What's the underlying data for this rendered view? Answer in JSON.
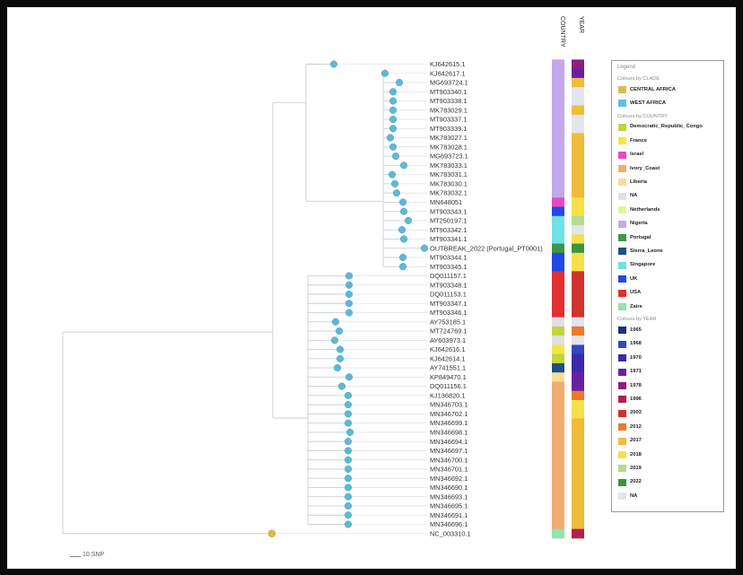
{
  "columns": [
    "COUNTRY",
    "YEAR"
  ],
  "tips": [
    {
      "label": "KJ642615.1",
      "country": "Nigeria",
      "year": "1978"
    },
    {
      "label": "KJ642617.1",
      "country": "Nigeria",
      "year": "1971"
    },
    {
      "label": "MG693724.1",
      "country": "Nigeria",
      "year": "2017"
    },
    {
      "label": "MT903340.1",
      "country": "Nigeria",
      "year": "NA"
    },
    {
      "label": "MT903338.1",
      "country": "Nigeria",
      "year": "NA"
    },
    {
      "label": "MK783029.1",
      "country": "Nigeria",
      "year": "2017"
    },
    {
      "label": "MT903337.1",
      "country": "Nigeria",
      "year": "NA"
    },
    {
      "label": "MT903339.1",
      "country": "Nigeria",
      "year": "NA"
    },
    {
      "label": "MK783027.1",
      "country": "Nigeria",
      "year": "2017"
    },
    {
      "label": "MK783028.1",
      "country": "Nigeria",
      "year": "2017"
    },
    {
      "label": "MG693723.1",
      "country": "Nigeria",
      "year": "2017"
    },
    {
      "label": "MK783033.1",
      "country": "Nigeria",
      "year": "2017"
    },
    {
      "label": "MK783031.1",
      "country": "Nigeria",
      "year": "2017"
    },
    {
      "label": "MK783030.1",
      "country": "Nigeria",
      "year": "2017"
    },
    {
      "label": "MK783032.1",
      "country": "Nigeria",
      "year": "2017"
    },
    {
      "label": "MN648051",
      "country": "Israel",
      "year": "2018"
    },
    {
      "label": "MT903343.1",
      "country": "UK",
      "year": "2018"
    },
    {
      "label": "MT250197.1",
      "country": "Singapore",
      "year": "2019"
    },
    {
      "label": "MT903342.1",
      "country": "Singapore",
      "year": "NA"
    },
    {
      "label": "MT903341.1",
      "country": "Singapore",
      "year": "2018"
    },
    {
      "label": "OUTBREAK_2022 (Portugal_PT0001)",
      "country": "Portugal",
      "year": "2022"
    },
    {
      "label": "MT903344.1",
      "country": "UK",
      "year": "2018"
    },
    {
      "label": "MT903345.1",
      "country": "UK",
      "year": "2018"
    },
    {
      "label": "DQ011157.1",
      "country": "USA",
      "year": "2003"
    },
    {
      "label": "MT903348.1",
      "country": "USA",
      "year": "2003"
    },
    {
      "label": "DQ011153.1",
      "country": "USA",
      "year": "2003"
    },
    {
      "label": "MT903347.1",
      "country": "USA",
      "year": "2003"
    },
    {
      "label": "MT903346.1",
      "country": "USA",
      "year": "2003"
    },
    {
      "label": "AY753185.1",
      "country": "NA",
      "year": "NA"
    },
    {
      "label": "MT724769.1",
      "country": "Democratic_Republic_Congo",
      "year": "2012"
    },
    {
      "label": "AY603973.1",
      "country": "NA",
      "year": "NA"
    },
    {
      "label": "KJ642616.1",
      "country": "France",
      "year": "1968"
    },
    {
      "label": "KJ642614.1",
      "country": "Democratic_Republic_Congo",
      "year": "1970"
    },
    {
      "label": "AY741551.1",
      "country": "Sierra_Leone",
      "year": "1970"
    },
    {
      "label": "KP849470.1",
      "country": "Liberia",
      "year": "1971"
    },
    {
      "label": "DQ011156.1",
      "country": "Ivory_Coast",
      "year": "1971"
    },
    {
      "label": "KJ136820.1",
      "country": "Ivory_Coast",
      "year": "2012"
    },
    {
      "label": "MN346703.1",
      "country": "Ivory_Coast",
      "year": "2018"
    },
    {
      "label": "MN346702.1",
      "country": "Ivory_Coast",
      "year": "2018"
    },
    {
      "label": "MN346699.1",
      "country": "Ivory_Coast",
      "year": "2017"
    },
    {
      "label": "MN346698.1",
      "country": "Ivory_Coast",
      "year": "2017"
    },
    {
      "label": "MN346694.1",
      "country": "Ivory_Coast",
      "year": "2017"
    },
    {
      "label": "MN346697.1",
      "country": "Ivory_Coast",
      "year": "2017"
    },
    {
      "label": "MN346700.1",
      "country": "Ivory_Coast",
      "year": "2017"
    },
    {
      "label": "MN346701.1",
      "country": "Ivory_Coast",
      "year": "2017"
    },
    {
      "label": "MN346692.1",
      "country": "Ivory_Coast",
      "year": "2017"
    },
    {
      "label": "MN346690.1",
      "country": "Ivory_Coast",
      "year": "2017"
    },
    {
      "label": "MN346693.1",
      "country": "Ivory_Coast",
      "year": "2017"
    },
    {
      "label": "MN346695.1",
      "country": "Ivory_Coast",
      "year": "2017"
    },
    {
      "label": "MN346691.1",
      "country": "Ivory_Coast",
      "year": "2017"
    },
    {
      "label": "MN346696.1",
      "country": "Ivory_Coast",
      "year": "2017"
    },
    {
      "label": "NC_003310.1",
      "country": "Zaire",
      "year": "1996"
    }
  ],
  "legend": {
    "title": "Legend",
    "sections": [
      {
        "heading": "Colours by CLADE",
        "items": [
          {
            "label": "CENTRAL AFRICA",
            "color": "#d8bd4e"
          },
          {
            "label": "WEST AFRICA",
            "color": "#5bc4e0"
          }
        ]
      },
      {
        "heading": "Colours by COUNTRY",
        "items": [
          {
            "label": "Democratic_Republic_Congo",
            "color": "#c2d440"
          },
          {
            "label": "France",
            "color": "#f2e746"
          },
          {
            "label": "Israel",
            "color": "#e24cc0"
          },
          {
            "label": "Ivory_Coast",
            "color": "#f0ae6e"
          },
          {
            "label": "Liberia",
            "color": "#f7dc9a"
          },
          {
            "label": "NA",
            "color": "#e0e0e0"
          },
          {
            "label": "Netherlands",
            "color": "#e3f59a"
          },
          {
            "label": "Nigeria",
            "color": "#c3a9ea"
          },
          {
            "label": "Portugal",
            "color": "#3f9744"
          },
          {
            "label": "Sierra_Leone",
            "color": "#1f4f85"
          },
          {
            "label": "Singapore",
            "color": "#6fe1e4"
          },
          {
            "label": "UK",
            "color": "#2249e6"
          },
          {
            "label": "USA",
            "color": "#e0302f"
          },
          {
            "label": "Zaire",
            "color": "#93e2b0"
          }
        ]
      },
      {
        "heading": "Colours by YEAR",
        "items": [
          {
            "label": "1965",
            "color": "#1e2f82"
          },
          {
            "label": "1968",
            "color": "#2c4bbd"
          },
          {
            "label": "1970",
            "color": "#3d2aa8"
          },
          {
            "label": "1971",
            "color": "#6a1f9f"
          },
          {
            "label": "1978",
            "color": "#8f1f7a"
          },
          {
            "label": "1996",
            "color": "#b2204f"
          },
          {
            "label": "2003",
            "color": "#d1322c"
          },
          {
            "label": "2012",
            "color": "#ea7a2a"
          },
          {
            "label": "2017",
            "color": "#f0bd3a"
          },
          {
            "label": "2018",
            "color": "#f5e04a"
          },
          {
            "label": "2019",
            "color": "#b5db8f"
          },
          {
            "label": "2022",
            "color": "#3a9440"
          },
          {
            "label": "NA",
            "color": "#e2e4ee"
          }
        ]
      }
    ]
  },
  "scale_label": "10 SNP",
  "colors": {
    "branch": "#c9cdd6",
    "node": "#5fb8d4",
    "root_node": "#d8bd4e"
  }
}
